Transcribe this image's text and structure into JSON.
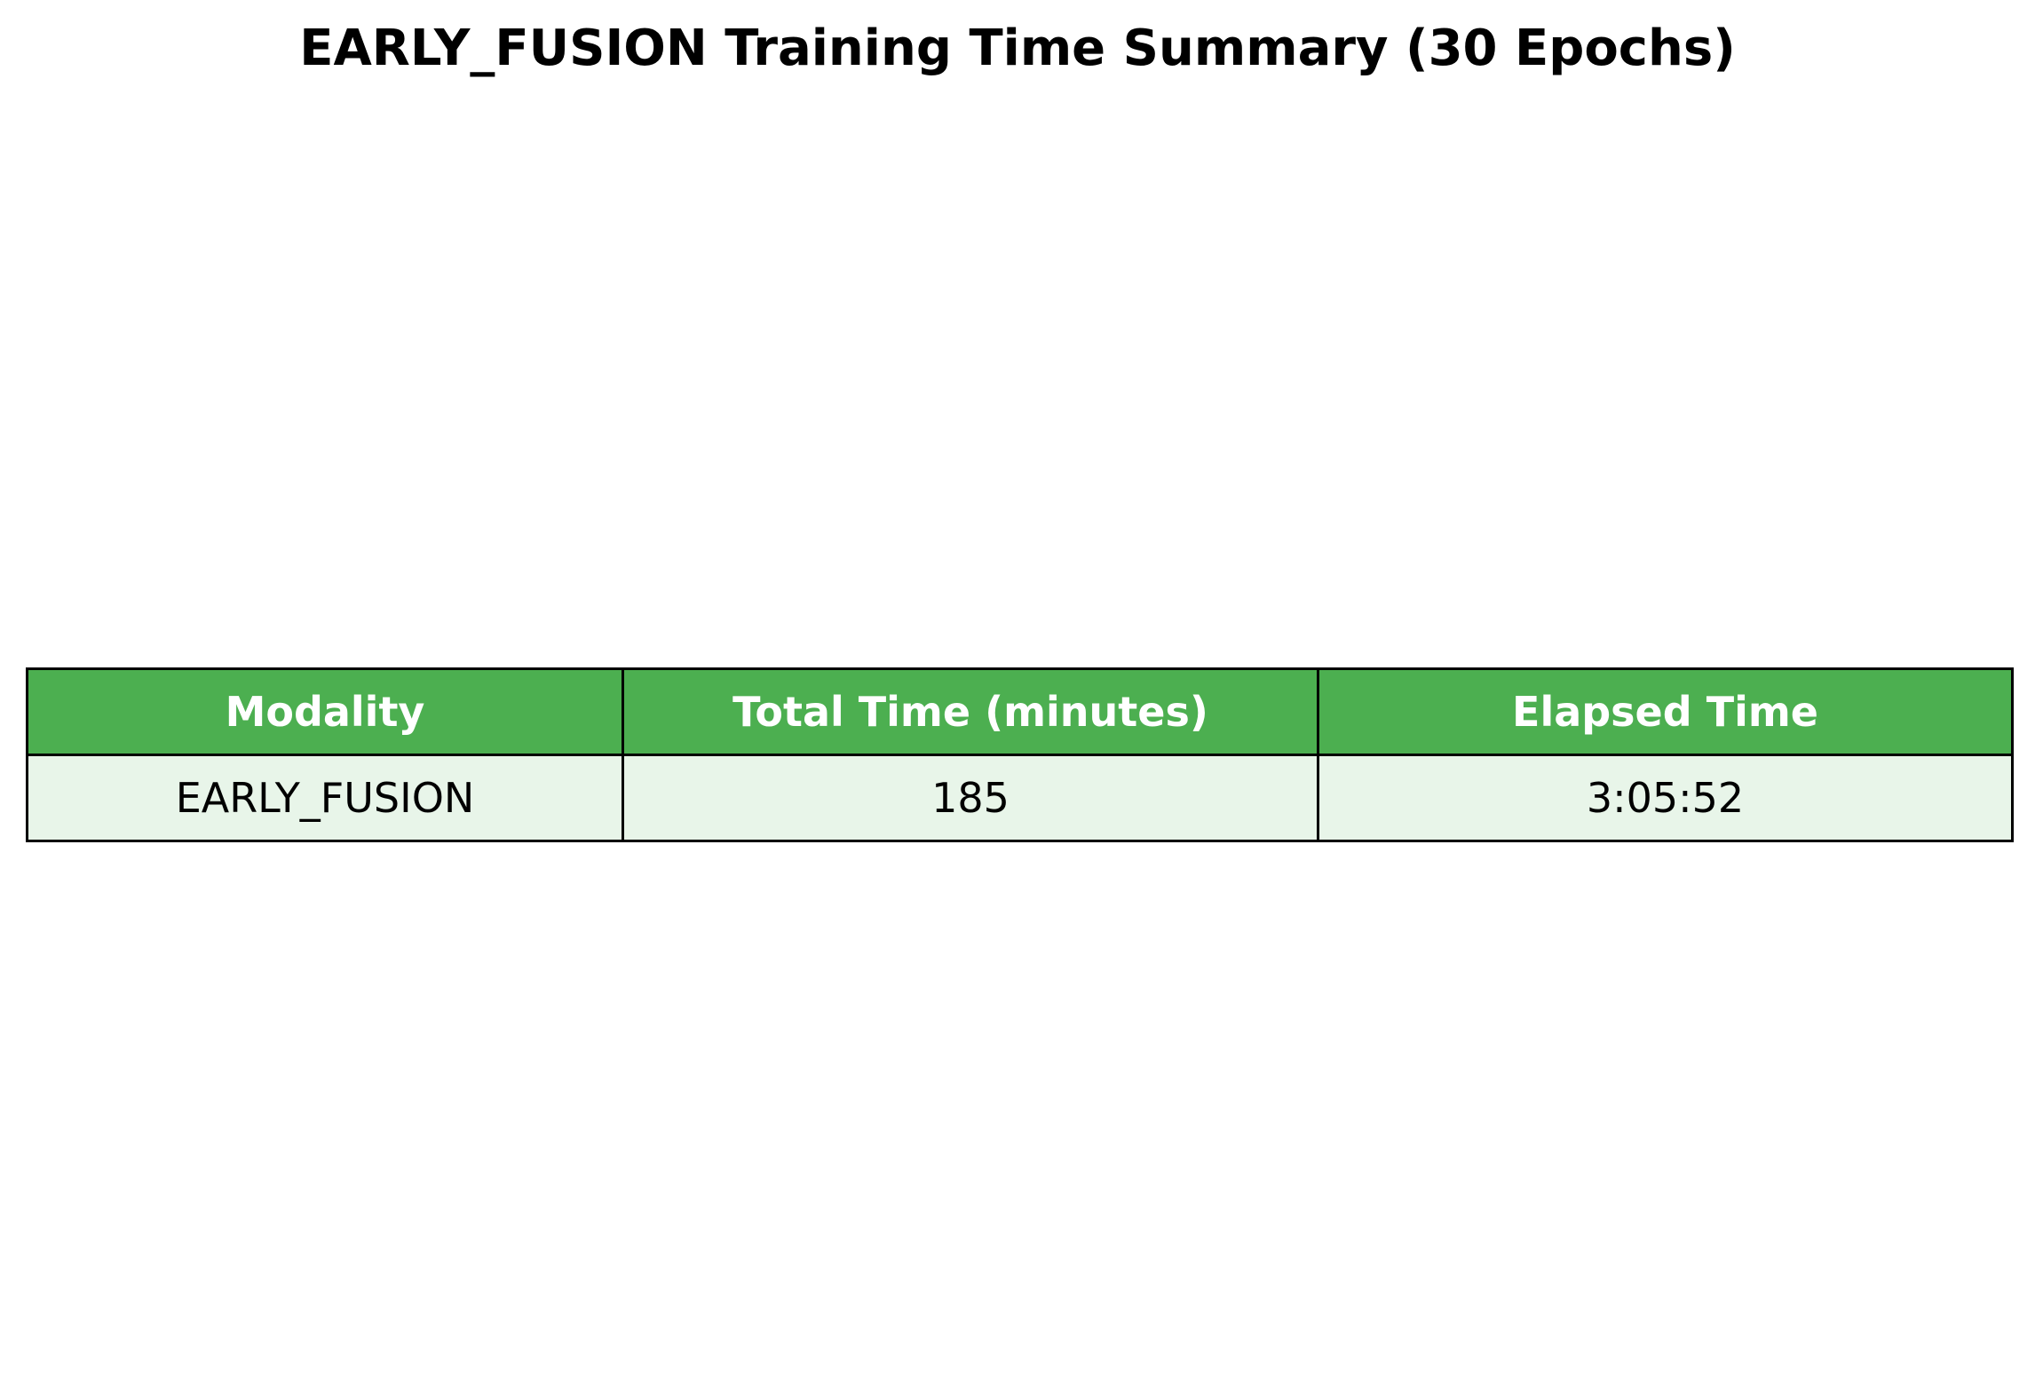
{
  "chart_data": {
    "type": "table",
    "title": "EARLY_FUSION Training Time Summary (30 Epochs)",
    "columns": [
      "Modality",
      "Total Time (minutes)",
      "Elapsed Time"
    ],
    "rows": [
      [
        "EARLY_FUSION",
        "185",
        "3:05:52"
      ]
    ],
    "colors": {
      "header_background": "#4caf50",
      "header_text": "#ffffff",
      "row_background": "#e8f5e9",
      "row_text": "#000000",
      "border": "#000000"
    }
  }
}
